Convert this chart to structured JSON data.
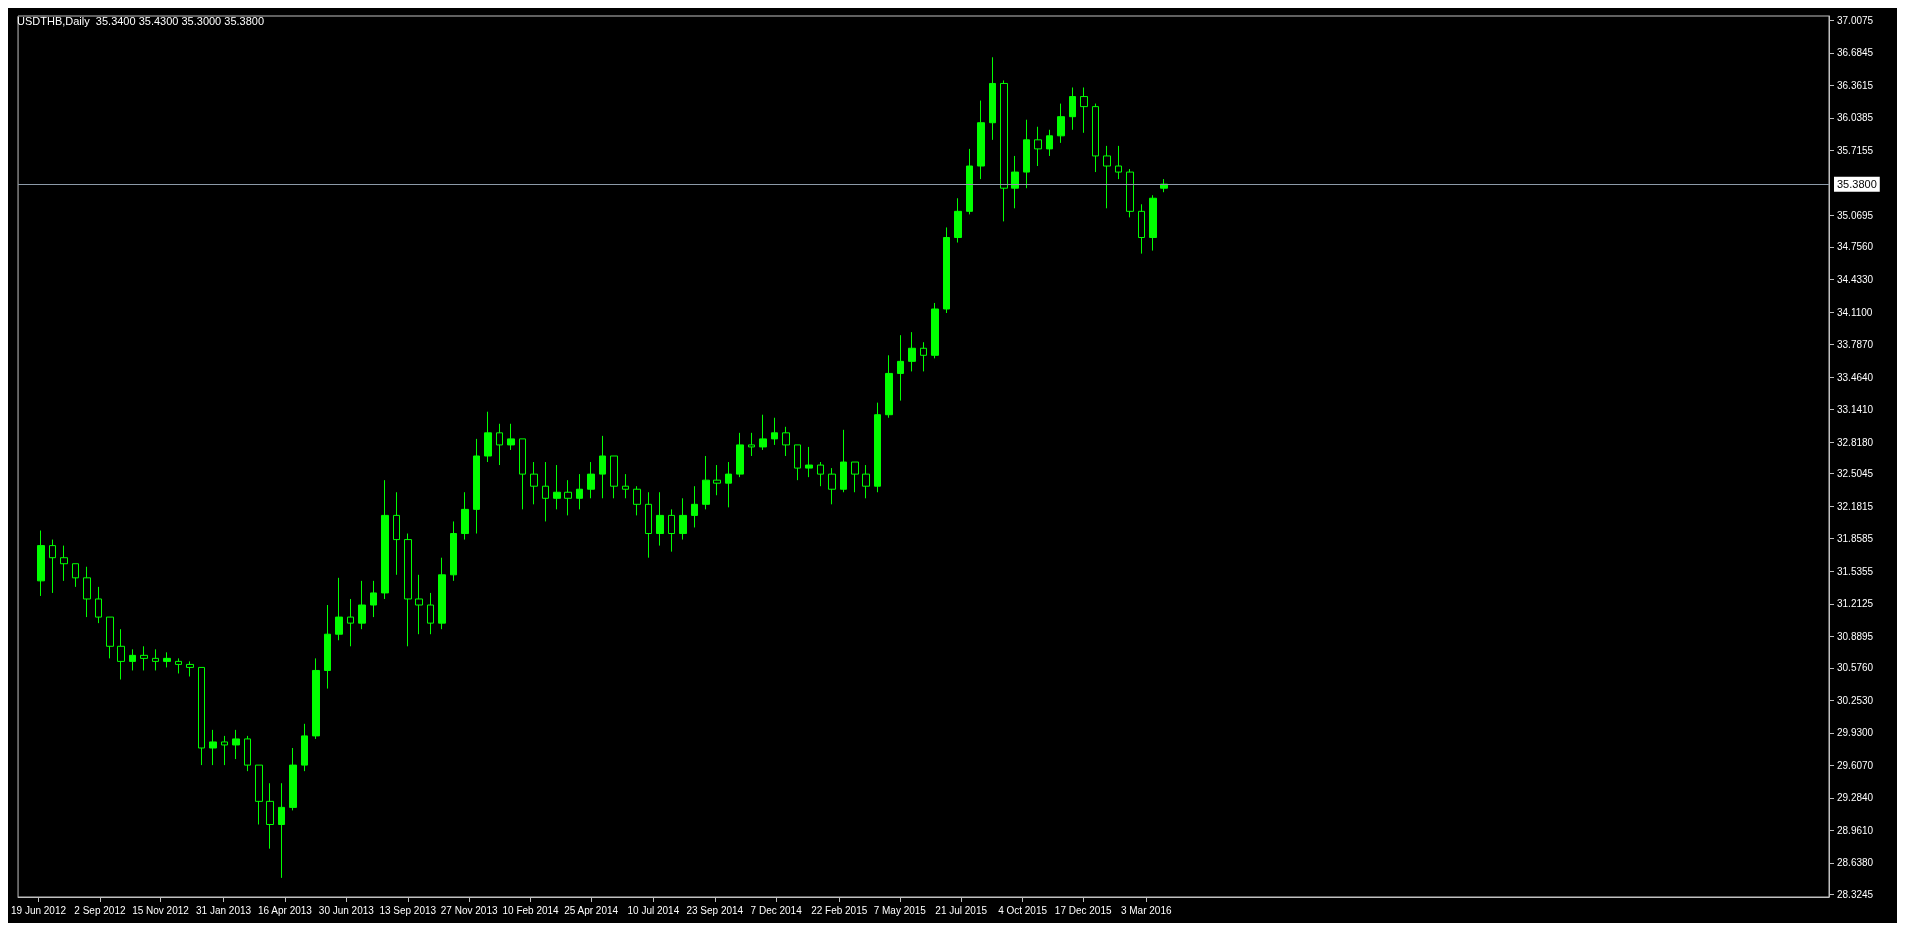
{
  "chart_data": {
    "type": "candlestick",
    "title": "USDTHB,Daily  35.3400 35.4300 35.3000 35.3800",
    "color": "#00ff00",
    "grid": false,
    "x": [
      "2012-06-22",
      "2012-07-06",
      "2012-07-20",
      "2012-08-03",
      "2012-08-17",
      "2012-08-31",
      "2012-09-14",
      "2012-09-28",
      "2012-10-12",
      "2012-10-26",
      "2012-11-09",
      "2012-11-23",
      "2012-12-07",
      "2012-12-21",
      "2013-01-04",
      "2013-01-18",
      "2013-02-01",
      "2013-02-15",
      "2013-03-01",
      "2013-03-15",
      "2013-03-29",
      "2013-04-12",
      "2013-04-26",
      "2013-05-10",
      "2013-05-24",
      "2013-06-07",
      "2013-06-21",
      "2013-07-05",
      "2013-07-19",
      "2013-08-02",
      "2013-08-16",
      "2013-08-30",
      "2013-09-13",
      "2013-09-27",
      "2013-10-11",
      "2013-10-25",
      "2013-11-08",
      "2013-11-22",
      "2013-12-06",
      "2013-12-20",
      "2014-01-03",
      "2014-01-17",
      "2014-01-31",
      "2014-02-14",
      "2014-02-28",
      "2014-03-14",
      "2014-03-28",
      "2014-04-11",
      "2014-04-25",
      "2014-05-09",
      "2014-05-23",
      "2014-06-06",
      "2014-06-20",
      "2014-07-04",
      "2014-07-18",
      "2014-08-01",
      "2014-08-15",
      "2014-08-29",
      "2014-09-12",
      "2014-09-26",
      "2014-10-10",
      "2014-10-24",
      "2014-11-07",
      "2014-11-21",
      "2014-12-05",
      "2014-12-19",
      "2015-01-02",
      "2015-01-16",
      "2015-01-30",
      "2015-02-13",
      "2015-02-27",
      "2015-03-13",
      "2015-03-27",
      "2015-04-10",
      "2015-04-24",
      "2015-05-08",
      "2015-05-22",
      "2015-06-05",
      "2015-06-19",
      "2015-07-03",
      "2015-07-17",
      "2015-07-31",
      "2015-08-14",
      "2015-08-28",
      "2015-09-11",
      "2015-09-25",
      "2015-10-09",
      "2015-10-23",
      "2015-11-06",
      "2015-11-20",
      "2015-12-04",
      "2015-12-18",
      "2016-01-01",
      "2016-01-15",
      "2016-01-29",
      "2016-02-12",
      "2016-02-26",
      "2016-03-11",
      "2016-03-25"
    ],
    "ohlc": [
      [
        31.44,
        31.94,
        31.29,
        31.79
      ],
      [
        31.79,
        31.85,
        31.32,
        31.67
      ],
      [
        31.67,
        31.79,
        31.44,
        31.61
      ],
      [
        31.61,
        31.61,
        31.38,
        31.47
      ],
      [
        31.47,
        31.58,
        31.08,
        31.26
      ],
      [
        31.26,
        31.38,
        31.02,
        31.08
      ],
      [
        31.08,
        31.08,
        30.67,
        30.79
      ],
      [
        30.79,
        30.96,
        30.46,
        30.64
      ],
      [
        30.64,
        30.76,
        30.55,
        30.7
      ],
      [
        30.7,
        30.79,
        30.55,
        30.67
      ],
      [
        30.67,
        30.76,
        30.55,
        30.64
      ],
      [
        30.64,
        30.73,
        30.58,
        30.67
      ],
      [
        30.64,
        30.67,
        30.52,
        30.61
      ],
      [
        30.61,
        30.64,
        30.49,
        30.58
      ],
      [
        30.58,
        30.58,
        29.61,
        29.78
      ],
      [
        29.78,
        29.96,
        29.61,
        29.84
      ],
      [
        29.84,
        29.9,
        29.61,
        29.81
      ],
      [
        29.81,
        29.96,
        29.67,
        29.87
      ],
      [
        29.87,
        29.9,
        29.55,
        29.61
      ],
      [
        29.61,
        29.61,
        29.02,
        29.25
      ],
      [
        29.25,
        29.43,
        28.78,
        29.02
      ],
      [
        29.02,
        29.43,
        28.49,
        29.19
      ],
      [
        29.19,
        29.78,
        29.16,
        29.61
      ],
      [
        29.61,
        30.02,
        29.55,
        29.9
      ],
      [
        29.9,
        30.67,
        29.87,
        30.55
      ],
      [
        30.55,
        31.2,
        30.37,
        30.91
      ],
      [
        30.91,
        31.47,
        30.85,
        31.08
      ],
      [
        31.08,
        31.26,
        30.79,
        31.02
      ],
      [
        31.02,
        31.44,
        30.96,
        31.2
      ],
      [
        31.2,
        31.44,
        31.08,
        31.32
      ],
      [
        31.32,
        32.44,
        31.26,
        32.09
      ],
      [
        32.09,
        32.32,
        31.5,
        31.85
      ],
      [
        31.85,
        31.91,
        30.79,
        31.26
      ],
      [
        31.26,
        31.5,
        30.91,
        31.2
      ],
      [
        31.2,
        31.32,
        30.91,
        31.02
      ],
      [
        31.02,
        31.67,
        30.96,
        31.5
      ],
      [
        31.5,
        32.03,
        31.44,
        31.91
      ],
      [
        31.91,
        32.32,
        31.85,
        32.15
      ],
      [
        32.15,
        32.85,
        31.91,
        32.68
      ],
      [
        32.68,
        33.12,
        32.62,
        32.91
      ],
      [
        32.91,
        33.0,
        32.59,
        32.79
      ],
      [
        32.79,
        33.0,
        32.74,
        32.85
      ],
      [
        32.85,
        32.85,
        32.15,
        32.5
      ],
      [
        32.5,
        32.62,
        32.2,
        32.38
      ],
      [
        32.38,
        32.62,
        32.03,
        32.26
      ],
      [
        32.26,
        32.59,
        32.15,
        32.32
      ],
      [
        32.32,
        32.44,
        32.09,
        32.26
      ],
      [
        32.26,
        32.5,
        32.15,
        32.35
      ],
      [
        32.35,
        32.62,
        32.26,
        32.5
      ],
      [
        32.5,
        32.88,
        32.26,
        32.68
      ],
      [
        32.68,
        32.68,
        32.26,
        32.38
      ],
      [
        32.38,
        32.5,
        32.26,
        32.35
      ],
      [
        32.35,
        32.38,
        32.09,
        32.2
      ],
      [
        32.2,
        32.32,
        31.67,
        31.91
      ],
      [
        31.91,
        32.32,
        31.79,
        32.09
      ],
      [
        32.09,
        32.15,
        31.73,
        31.91
      ],
      [
        31.91,
        32.26,
        31.85,
        32.09
      ],
      [
        32.09,
        32.38,
        31.97,
        32.2
      ],
      [
        32.2,
        32.68,
        32.15,
        32.44
      ],
      [
        32.44,
        32.59,
        32.29,
        32.41
      ],
      [
        32.41,
        32.62,
        32.17,
        32.5
      ],
      [
        32.5,
        32.91,
        32.47,
        32.79
      ],
      [
        32.79,
        32.91,
        32.68,
        32.77
      ],
      [
        32.77,
        33.09,
        32.74,
        32.85
      ],
      [
        32.85,
        33.06,
        32.79,
        32.91
      ],
      [
        32.91,
        32.97,
        32.68,
        32.79
      ],
      [
        32.79,
        32.79,
        32.44,
        32.56
      ],
      [
        32.56,
        32.77,
        32.47,
        32.59
      ],
      [
        32.59,
        32.62,
        32.38,
        32.5
      ],
      [
        32.5,
        32.56,
        32.2,
        32.35
      ],
      [
        32.35,
        32.94,
        32.32,
        32.62
      ],
      [
        32.62,
        32.62,
        32.32,
        32.5
      ],
      [
        32.5,
        32.59,
        32.26,
        32.38
      ],
      [
        32.38,
        33.21,
        32.32,
        33.09
      ],
      [
        33.09,
        33.68,
        33.06,
        33.5
      ],
      [
        33.5,
        33.88,
        33.23,
        33.62
      ],
      [
        33.62,
        33.91,
        33.52,
        33.75
      ],
      [
        33.75,
        33.81,
        33.52,
        33.68
      ],
      [
        33.68,
        34.2,
        33.65,
        34.14
      ],
      [
        34.14,
        34.95,
        34.1,
        34.85
      ],
      [
        34.85,
        35.24,
        34.8,
        35.11
      ],
      [
        35.11,
        35.73,
        35.08,
        35.56
      ],
      [
        35.56,
        36.21,
        35.43,
        35.99
      ],
      [
        35.99,
        36.64,
        35.82,
        36.38
      ],
      [
        36.38,
        36.41,
        35.01,
        35.34
      ],
      [
        35.34,
        35.66,
        35.14,
        35.5
      ],
      [
        35.5,
        36.02,
        35.34,
        35.82
      ],
      [
        35.82,
        35.95,
        35.56,
        35.73
      ],
      [
        35.73,
        35.92,
        35.66,
        35.86
      ],
      [
        35.86,
        36.18,
        35.79,
        36.05
      ],
      [
        36.05,
        36.34,
        35.92,
        36.25
      ],
      [
        36.25,
        36.34,
        35.89,
        36.15
      ],
      [
        36.15,
        36.18,
        35.5,
        35.66
      ],
      [
        35.66,
        35.76,
        35.14,
        35.56
      ],
      [
        35.56,
        35.76,
        35.43,
        35.5
      ],
      [
        35.5,
        35.53,
        35.05,
        35.11
      ],
      [
        35.11,
        35.18,
        34.69,
        34.85
      ],
      [
        34.85,
        35.27,
        34.72,
        35.24
      ],
      [
        35.34,
        35.43,
        35.3,
        35.38
      ]
    ],
    "xlim": [
      "2012-05-25",
      "2018-06-15"
    ],
    "xticks": [
      {
        "value": "2012-06-19",
        "label": "19 Jun 2012"
      },
      {
        "value": "2012-09-02",
        "label": "2 Sep 2012"
      },
      {
        "value": "2012-11-15",
        "label": "15 Nov 2012"
      },
      {
        "value": "2013-01-31",
        "label": "31 Jan 2013"
      },
      {
        "value": "2013-04-16",
        "label": "16 Apr 2013"
      },
      {
        "value": "2013-06-30",
        "label": "30 Jun 2013"
      },
      {
        "value": "2013-09-13",
        "label": "13 Sep 2013"
      },
      {
        "value": "2013-11-27",
        "label": "27 Nov 2013"
      },
      {
        "value": "2014-02-10",
        "label": "10 Feb 2014"
      },
      {
        "value": "2014-04-25",
        "label": "25 Apr 2014"
      },
      {
        "value": "2014-07-10",
        "label": "10 Jul 2014"
      },
      {
        "value": "2014-09-23",
        "label": "23 Sep 2014"
      },
      {
        "value": "2014-12-07",
        "label": "7 Dec 2014"
      },
      {
        "value": "2015-02-22",
        "label": "22 Feb 2015"
      },
      {
        "value": "2015-05-07",
        "label": "7 May 2015"
      },
      {
        "value": "2015-07-21",
        "label": "21 Jul 2015"
      },
      {
        "value": "2015-10-04",
        "label": "4 Oct 2015"
      },
      {
        "value": "2015-12-17",
        "label": "17 Dec 2015"
      },
      {
        "value": "2016-03-03",
        "label": "3 Mar 2016"
      }
    ],
    "ylim": [
      28.3,
      37.05
    ],
    "yticks": [
      37.0075,
      36.6845,
      36.3615,
      36.0385,
      35.7155,
      35.0695,
      {
        "value": 34.756,
        "label": "34.7560"
      },
      {
        "value": 34.433,
        "label": "34.4330"
      },
      {
        "value": 34.11,
        "label": "34.1100"
      },
      {
        "value": 33.787,
        "label": "33.7870"
      },
      {
        "value": 33.464,
        "label": "33.4640"
      },
      {
        "value": 33.141,
        "label": "33.1410"
      },
      {
        "value": 32.818,
        "label": "32.8180"
      },
      32.5045,
      32.1815,
      31.8585,
      31.5355,
      31.2125,
      30.8895,
      {
        "value": 30.576,
        "label": "30.5760"
      },
      {
        "value": 30.253,
        "label": "30.2530"
      },
      {
        "value": 29.93,
        "label": "29.9300"
      },
      {
        "value": 29.607,
        "label": "29.6070"
      },
      {
        "value": 29.284,
        "label": "29.2840"
      },
      {
        "value": 28.961,
        "label": "28.9610"
      },
      {
        "value": 28.638,
        "label": "28.6380"
      },
      28.3245
    ],
    "ref_lines": [
      {
        "axis": "y",
        "value": 35.38,
        "label": "35.3800",
        "color": "#8c9aa8"
      }
    ]
  }
}
